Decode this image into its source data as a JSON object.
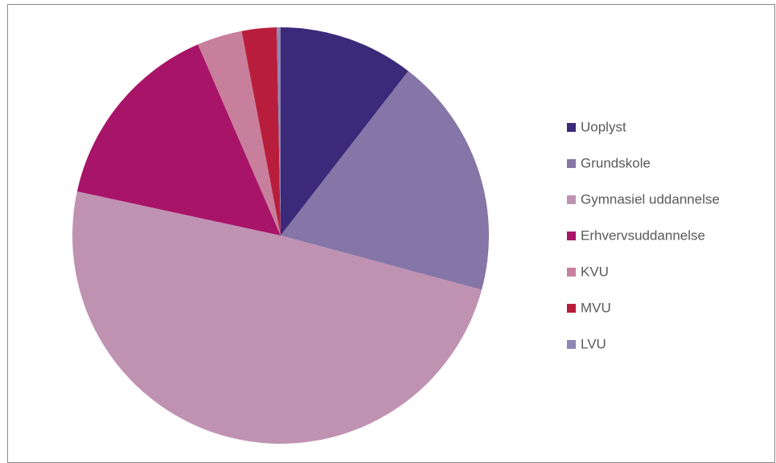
{
  "chart_data": {
    "type": "pie",
    "categories": [
      "Uoplyst",
      "Grundskole",
      "Gymnasiel uddannelse",
      "Erhvervsuddannelse",
      "KVU",
      "MVU",
      "LVU"
    ],
    "values": [
      10.5,
      18.7,
      49.2,
      15.1,
      3.5,
      2.7,
      0.3
    ],
    "colors": [
      "#3b2a7a",
      "#8576a7",
      "#c092b2",
      "#a81468",
      "#c87f9c",
      "#b81e3c",
      "#8f86b3"
    ],
    "legend": "right"
  }
}
